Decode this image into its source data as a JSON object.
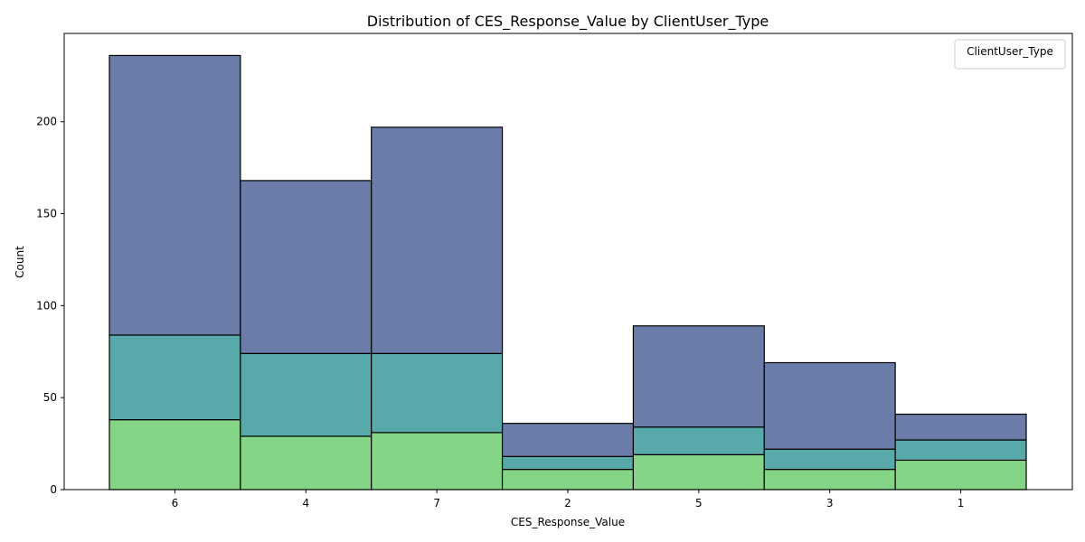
{
  "chart_data": {
    "type": "bar",
    "stacked": true,
    "title": "Distribution of CES_Response_Value by ClientUser_Type",
    "xlabel": "CES_Response_Value",
    "ylabel": "Count",
    "categories": [
      "6",
      "4",
      "7",
      "2",
      "5",
      "3",
      "1"
    ],
    "ylim": [
      0,
      248
    ],
    "yticks": [
      0,
      50,
      100,
      150,
      200
    ],
    "legend": {
      "title": "ClientUser_Type",
      "placement": "top-right"
    },
    "series": [
      {
        "values": [
          38,
          29,
          31,
          11,
          19,
          11,
          16
        ],
        "color": "#84d586"
      },
      {
        "values": [
          46,
          45,
          43,
          7,
          15,
          11,
          11
        ],
        "color": "#58aaaa"
      },
      {
        "values": [
          152,
          94,
          123,
          18,
          55,
          47,
          14
        ],
        "color": "#6b7ca8"
      }
    ]
  }
}
